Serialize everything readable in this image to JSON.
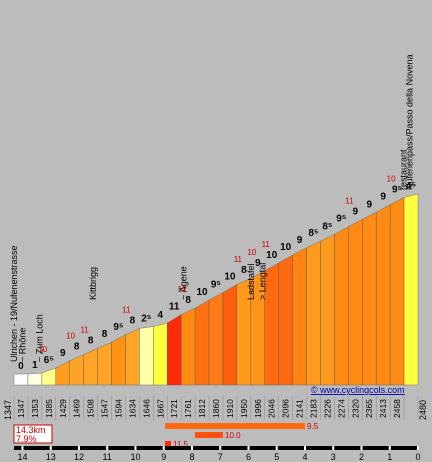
{
  "chart_data": {
    "type": "bar",
    "start_altitude": "1347",
    "end_altitude": "2480",
    "summary": {
      "distance": "14.3km",
      "average_gradient": "7.9%"
    },
    "credit": "© www.cyclingcols.com",
    "x_ticks": [
      "14",
      "13",
      "12",
      "11",
      "10",
      "9",
      "8",
      "7",
      "6",
      "5",
      "4",
      "3",
      "2",
      "1",
      "0"
    ],
    "segments": [
      {
        "altitude": "1347",
        "gradient": "0",
        "max": "",
        "color": "#ffffff"
      },
      {
        "altitude": "1353",
        "gradient": "1",
        "max": "",
        "color": "#ffffe0"
      },
      {
        "altitude": "1385",
        "gradient": "6⁵",
        "max": "10",
        "color": "#ffff88"
      },
      {
        "altitude": "1429",
        "gradient": "9",
        "max": "",
        "color": "#ff9c1e"
      },
      {
        "altitude": "1469",
        "gradient": "8",
        "max": "10",
        "color": "#ffa426"
      },
      {
        "altitude": "1508",
        "gradient": "8",
        "max": "11",
        "color": "#ffa426"
      },
      {
        "altitude": "1547",
        "gradient": "8",
        "max": "",
        "color": "#ffa426"
      },
      {
        "altitude": "1594",
        "gradient": "9⁵",
        "max": "",
        "color": "#ff9414"
      },
      {
        "altitude": "1634",
        "gradient": "8",
        "max": "11",
        "color": "#ffa426"
      },
      {
        "altitude": "1646",
        "gradient": "2⁵",
        "max": "",
        "color": "#ffffa8"
      },
      {
        "altitude": "1667",
        "gradient": "4",
        "max": "",
        "color": "#ffff40"
      },
      {
        "altitude": "1721",
        "gradient": "11",
        "max": "",
        "color": "#ff2a0a"
      },
      {
        "altitude": "1761",
        "gradient": "8",
        "max": "12",
        "color": "#ff8c10"
      },
      {
        "altitude": "1812",
        "gradient": "10",
        "max": "",
        "color": "#ff7010"
      },
      {
        "altitude": "1860",
        "gradient": "9⁵",
        "max": "",
        "color": "#ff7a14"
      },
      {
        "altitude": "1910",
        "gradient": "10",
        "max": "",
        "color": "#ff5e0c"
      },
      {
        "altitude": "1950",
        "gradient": "8",
        "max": "11",
        "color": "#ff9a1c"
      },
      {
        "altitude": "1996",
        "gradient": "9",
        "max": "10",
        "color": "#ff9418"
      },
      {
        "altitude": "2046",
        "gradient": "10",
        "max": "11",
        "color": "#ff6a10"
      },
      {
        "altitude": "2096",
        "gradient": "10",
        "max": "",
        "color": "#ff6a10"
      },
      {
        "altitude": "2141",
        "gradient": "9",
        "max": "",
        "color": "#ff8412"
      },
      {
        "altitude": "2183",
        "gradient": "8⁵",
        "max": "",
        "color": "#ff9a1c"
      },
      {
        "altitude": "2226",
        "gradient": "8⁵",
        "max": "",
        "color": "#ff9a1c"
      },
      {
        "altitude": "2274",
        "gradient": "9⁵",
        "max": "",
        "color": "#ff8a14"
      },
      {
        "altitude": "2320",
        "gradient": "9",
        "max": "11",
        "color": "#ff8a14"
      },
      {
        "altitude": "2365",
        "gradient": "9",
        "max": "",
        "color": "#ff8a14"
      },
      {
        "altitude": "2413",
        "gradient": "9",
        "max": "",
        "color": "#ff8a14"
      },
      {
        "altitude": "2458",
        "gradient": "9⁵",
        "max": "10",
        "color": "#ff8a14"
      },
      {
        "altitude": "",
        "gradient": "4⁵",
        "max": "",
        "color": "#ffff40"
      }
    ],
    "landmarks": [
      {
        "km_from_end": 14.2,
        "label": "Ulrichen - 19/Nufenenstrasse"
      },
      {
        "km_from_end": 13.9,
        "label": "~ Rhône"
      },
      {
        "km_from_end": 13.3,
        "label": "~ Zum Loch"
      },
      {
        "km_from_end": 11.4,
        "label": "Kittbrigg"
      },
      {
        "km_from_end": 8.2,
        "label": "~ Ägene"
      },
      {
        "km_from_end": 5.8,
        "label": "Ladstafel"
      },
      {
        "km_from_end": 5.4,
        "label": "> Lengtal"
      },
      {
        "km_from_end": 0.4,
        "label": "restaurant"
      },
      {
        "km_from_end": 0.2,
        "label": "Nufenenpass/Passo della Novena"
      }
    ],
    "legend_scale": [
      {
        "label": "9.5",
        "value": 9.5,
        "color": "#ff6a10"
      },
      {
        "label": "10.0",
        "value": 10.0,
        "color": "#ff5010"
      },
      {
        "label": "11.5",
        "value": 11.5,
        "color": "#ff2a0a"
      }
    ]
  }
}
